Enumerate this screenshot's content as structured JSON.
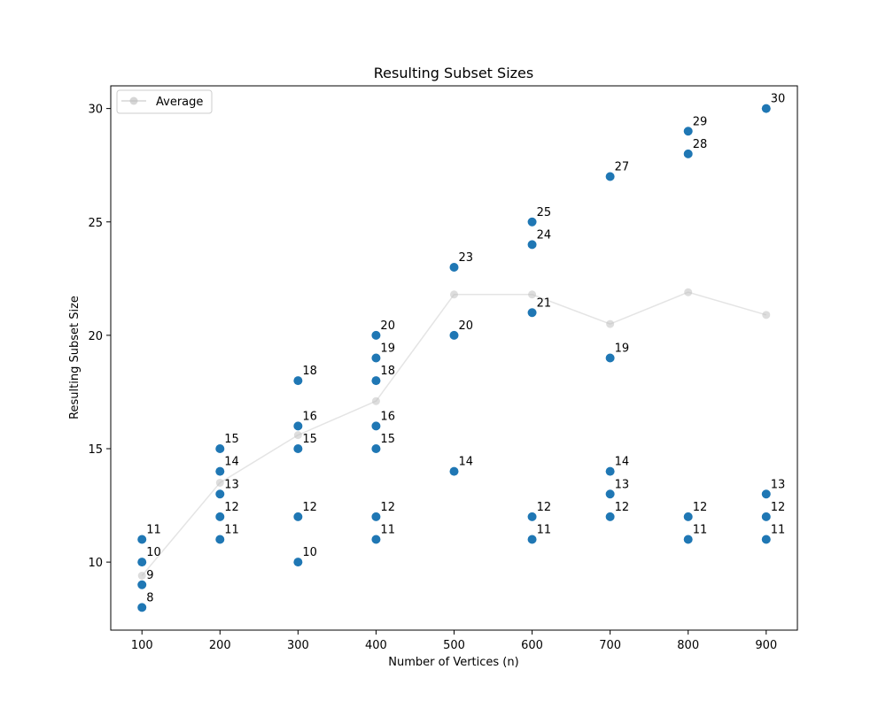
{
  "chart_data": {
    "type": "scatter",
    "title": "Resulting Subset Sizes",
    "xlabel": "Number of Vertices (n)",
    "ylabel": "Resulting Subset Size",
    "xlim": [
      60,
      940
    ],
    "ylim": [
      7,
      31
    ],
    "xticks": [
      100,
      200,
      300,
      400,
      500,
      600,
      700,
      800,
      900
    ],
    "yticks": [
      10,
      15,
      20,
      25,
      30
    ],
    "grid": false,
    "legend_position": "top-left",
    "colors": {
      "points": "#1f77b4",
      "average": "#bbbbbb"
    },
    "series": [
      {
        "kind": "scatter",
        "points": [
          [
            100,
            8
          ],
          [
            100,
            9
          ],
          [
            100,
            10
          ],
          [
            100,
            11
          ],
          [
            200,
            11
          ],
          [
            200,
            12
          ],
          [
            200,
            13
          ],
          [
            200,
            14
          ],
          [
            200,
            15
          ],
          [
            300,
            10
          ],
          [
            300,
            12
          ],
          [
            300,
            15
          ],
          [
            300,
            16
          ],
          [
            300,
            18
          ],
          [
            400,
            11
          ],
          [
            400,
            12
          ],
          [
            400,
            15
          ],
          [
            400,
            16
          ],
          [
            400,
            18
          ],
          [
            400,
            19
          ],
          [
            400,
            20
          ],
          [
            500,
            14
          ],
          [
            500,
            20
          ],
          [
            500,
            23
          ],
          [
            600,
            11
          ],
          [
            600,
            12
          ],
          [
            600,
            21
          ],
          [
            600,
            24
          ],
          [
            600,
            25
          ],
          [
            700,
            12
          ],
          [
            700,
            13
          ],
          [
            700,
            14
          ],
          [
            700,
            19
          ],
          [
            700,
            27
          ],
          [
            800,
            11
          ],
          [
            800,
            12
          ],
          [
            800,
            28
          ],
          [
            800,
            29
          ],
          [
            900,
            11
          ],
          [
            900,
            12
          ],
          [
            900,
            13
          ],
          [
            900,
            30
          ]
        ]
      },
      {
        "kind": "line",
        "name": "Average",
        "x": [
          100,
          200,
          300,
          400,
          500,
          600,
          700,
          800,
          900
        ],
        "values": [
          9.4,
          13.5,
          15.6,
          17.1,
          21.8,
          21.8,
          20.5,
          21.9,
          20.9
        ]
      }
    ]
  }
}
